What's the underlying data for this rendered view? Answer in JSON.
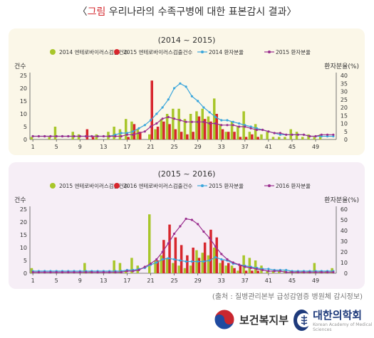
{
  "header": {
    "bracket_open": "〈",
    "highlight": "그림",
    "title": " 우리나라의 수족구병에 대한 표본감시 결과",
    "bracket_close": "〉"
  },
  "source_text": "(출처 : 질병관리본부 급성감염증 병원체 감시정보)",
  "logos": {
    "ministry_name": "보건복지부",
    "association_name": "대한의학회",
    "association_sub": "Korean Academy of Medical Sciences"
  },
  "colors": {
    "bar_green": "#a8c62a",
    "bar_red": "#d7262d",
    "line_blue": "#3aa6dc",
    "line_purple": "#9b2f8f",
    "axis": "#555555"
  },
  "chart_data": [
    {
      "type": "bar",
      "title": "(2014 ~ 2015)",
      "ylabel_left": "건수",
      "ylabel_right": "환자분율(%)",
      "ylim_left": [
        0,
        25
      ],
      "ylim_right": [
        0,
        40
      ],
      "left_ticks": [
        0,
        5,
        10,
        15,
        20,
        25
      ],
      "right_ticks": [
        0,
        5,
        10,
        15,
        20,
        25,
        30,
        35,
        40
      ],
      "x_ticks": [
        1,
        5,
        9,
        13,
        17,
        21,
        25,
        29,
        33,
        37,
        41,
        45,
        49
      ],
      "x": [
        1,
        2,
        3,
        4,
        5,
        6,
        7,
        8,
        9,
        10,
        11,
        12,
        13,
        14,
        15,
        16,
        17,
        18,
        19,
        20,
        21,
        22,
        23,
        24,
        25,
        26,
        27,
        28,
        29,
        30,
        31,
        32,
        33,
        34,
        35,
        36,
        37,
        38,
        39,
        40,
        41,
        42,
        43,
        44,
        45,
        46,
        47,
        48,
        49,
        50,
        51,
        52
      ],
      "series": [
        {
          "name": "2014 엔테로바이러스검출건수",
          "kind": "bar",
          "color": "#a8c62a",
          "values": [
            1,
            0,
            0,
            1,
            5,
            0,
            0,
            3,
            2,
            0,
            0,
            2,
            0,
            3,
            5,
            4,
            8,
            7,
            4,
            0,
            2,
            4,
            8,
            10,
            12,
            12,
            8,
            10,
            11,
            12,
            9,
            16,
            6,
            3,
            7,
            5,
            11,
            3,
            6,
            2,
            3,
            1,
            1,
            1,
            4,
            3,
            1,
            2,
            1,
            2,
            0,
            0
          ]
        },
        {
          "name": "2015 엔테로바이러스검출건수",
          "kind": "bar",
          "color": "#d7262d",
          "values": [
            0,
            0,
            0,
            0,
            0,
            0,
            0,
            0,
            0,
            4,
            1,
            0,
            0,
            0,
            0,
            0,
            1,
            6,
            3,
            0,
            23,
            5,
            7,
            6,
            4,
            3,
            2,
            3,
            9,
            8,
            7,
            10,
            4,
            3,
            3,
            1,
            1,
            2,
            1,
            0,
            0,
            0,
            0,
            0,
            0,
            0,
            0,
            0,
            0,
            0,
            0,
            0
          ]
        },
        {
          "name": "2014 환자분율",
          "kind": "line",
          "color": "#3aa6dc",
          "values": [
            2,
            2,
            2,
            2,
            2,
            2,
            2,
            2,
            2,
            2,
            2,
            2,
            2,
            2,
            3,
            4,
            4,
            5,
            7,
            9,
            12,
            16,
            20,
            25,
            32,
            35,
            33,
            27,
            24,
            20,
            17,
            14,
            12,
            12,
            11,
            10,
            9,
            8,
            7,
            6,
            5,
            4,
            3,
            3,
            3,
            3,
            3,
            2,
            2,
            2,
            2,
            2
          ]
        },
        {
          "name": "2015 환자분율",
          "kind": "line",
          "color": "#9b2f8f",
          "values": [
            2,
            2,
            2,
            2,
            2,
            2,
            2,
            2,
            2,
            2,
            2,
            2,
            2,
            2,
            2,
            2,
            3,
            3,
            4,
            5,
            8,
            10,
            13,
            14,
            13,
            12,
            11,
            11,
            11,
            11,
            10,
            10,
            9,
            9,
            9,
            8,
            8,
            7,
            6,
            6,
            5,
            4,
            4,
            3,
            3,
            3,
            3,
            2,
            2,
            3,
            3,
            3
          ]
        }
      ]
    },
    {
      "type": "bar",
      "title": "(2015 ~ 2016)",
      "ylabel_left": "건수",
      "ylabel_right": "환자분율(%)",
      "ylim_left": [
        0,
        25
      ],
      "ylim_right": [
        0,
        60
      ],
      "left_ticks": [
        0,
        5,
        10,
        15,
        20,
        25
      ],
      "right_ticks": [
        0,
        10,
        20,
        30,
        40,
        50,
        60
      ],
      "x_ticks": [
        1,
        5,
        9,
        13,
        17,
        21,
        25,
        29,
        33,
        37,
        41,
        45,
        49
      ],
      "x": [
        1,
        2,
        3,
        4,
        5,
        6,
        7,
        8,
        9,
        10,
        11,
        12,
        13,
        14,
        15,
        16,
        17,
        18,
        19,
        20,
        21,
        22,
        23,
        24,
        25,
        26,
        27,
        28,
        29,
        30,
        31,
        32,
        33,
        34,
        35,
        36,
        37,
        38,
        39,
        40,
        41,
        42,
        43,
        44,
        45,
        46,
        47,
        48,
        49,
        50,
        51,
        52
      ],
      "series": [
        {
          "name": "2015 엔테로바이러스검출건수",
          "kind": "bar",
          "color": "#a8c62a",
          "values": [
            2,
            0,
            0,
            0,
            0,
            0,
            0,
            0,
            0,
            4,
            1,
            0,
            0,
            0,
            5,
            4,
            1,
            6,
            3,
            0,
            23,
            5,
            7,
            6,
            4,
            3,
            2,
            3,
            9,
            8,
            7,
            10,
            4,
            3,
            3,
            1,
            7,
            6,
            5,
            3,
            1,
            1,
            1,
            1,
            1,
            1,
            1,
            1,
            4,
            1,
            1,
            2
          ]
        },
        {
          "name": "2016 엔테로바이러스검출건수",
          "kind": "bar",
          "color": "#d7262d",
          "values": [
            0,
            0,
            0,
            0,
            0,
            0,
            0,
            0,
            0,
            0,
            0,
            0,
            0,
            0,
            0,
            0,
            0,
            0,
            0,
            0,
            0,
            5,
            13,
            19,
            14,
            11,
            7,
            10,
            6,
            12,
            17,
            14,
            5,
            4,
            2,
            3,
            1,
            1,
            1,
            0,
            0,
            0,
            0,
            0,
            0,
            0,
            0,
            0,
            0,
            0,
            0,
            0
          ]
        },
        {
          "name": "2015 환자분율",
          "kind": "line",
          "color": "#3aa6dc",
          "values": [
            2,
            2,
            2,
            2,
            2,
            2,
            2,
            2,
            2,
            2,
            2,
            2,
            2,
            2,
            2,
            2,
            3,
            3,
            4,
            5,
            8,
            10,
            13,
            14,
            13,
            12,
            11,
            11,
            11,
            11,
            12,
            15,
            13,
            12,
            9,
            8,
            7,
            6,
            5,
            4,
            4,
            3,
            3,
            3,
            2,
            2,
            2,
            2,
            2,
            2,
            2,
            2
          ]
        },
        {
          "name": "2016 환자분율",
          "kind": "line",
          "color": "#9b2f8f",
          "values": [
            1,
            1,
            1,
            1,
            1,
            1,
            1,
            1,
            1,
            1,
            1,
            1,
            1,
            1,
            1,
            1,
            2,
            2,
            3,
            6,
            9,
            13,
            20,
            28,
            37,
            44,
            51,
            50,
            46,
            39,
            33,
            25,
            18,
            13,
            10,
            8,
            6,
            5,
            4,
            3,
            2,
            2,
            2,
            1,
            1,
            1,
            1,
            1,
            1,
            1,
            1,
            1
          ]
        }
      ]
    }
  ]
}
